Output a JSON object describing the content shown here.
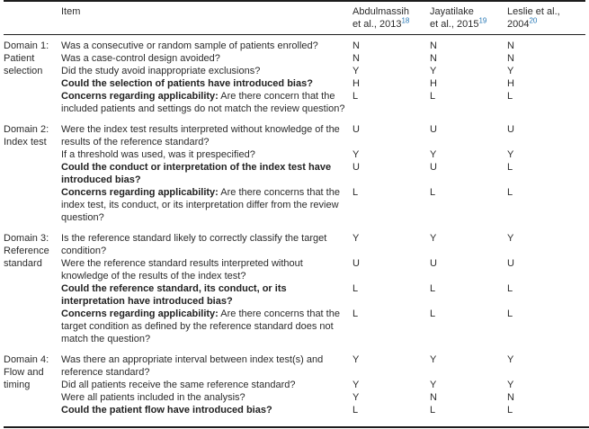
{
  "colors": {
    "text": "#2b2b2b",
    "rule": "#1c1c1c",
    "citation_link": "#2577b5",
    "background": "#ffffff"
  },
  "header": {
    "item_label": "Item",
    "studies": [
      {
        "lines": [
          "Abdulmassih",
          "et al., 2013"
        ],
        "ref": "18"
      },
      {
        "lines": [
          "Jayatilake",
          "et al., 2015"
        ],
        "ref": "19"
      },
      {
        "lines": [
          "Leslie et al.,",
          "2004"
        ],
        "ref": "20"
      }
    ]
  },
  "domains": [
    {
      "label": "Domain 1: Patient selection",
      "rows": [
        {
          "text": "Was a consecutive or random sample of patients enrolled?",
          "values": [
            "N",
            "N",
            "N"
          ]
        },
        {
          "text": "Was a case-control design avoided?",
          "values": [
            "N",
            "N",
            "N"
          ]
        },
        {
          "text": "Did the study avoid inappropriate exclusions?",
          "values": [
            "Y",
            "Y",
            "Y"
          ]
        },
        {
          "text": "Could the selection of patients have introduced bias?",
          "bold": true,
          "values": [
            "H",
            "H",
            "H"
          ]
        },
        {
          "prefix": "Concerns regarding applicability:",
          "text": "Are there concern that the included patients and settings do not match the review question?",
          "values": [
            "L",
            "L",
            "L"
          ]
        }
      ]
    },
    {
      "label": "Domain 2: Index test",
      "rows": [
        {
          "text": "Were the index test results interpreted without knowledge of the results of the reference standard?",
          "values": [
            "U",
            "U",
            "U"
          ]
        },
        {
          "text": "If a threshold was used, was it prespecified?",
          "values": [
            "Y",
            "Y",
            "Y"
          ]
        },
        {
          "text": "Could the conduct or interpretation of the index test have introduced bias?",
          "bold": true,
          "values": [
            "U",
            "U",
            "L"
          ]
        },
        {
          "prefix": "Concerns regarding applicability:",
          "text": "Are there concerns that the index test, its conduct, or its interpretation differ from the review question?",
          "values": [
            "L",
            "L",
            "L"
          ]
        }
      ]
    },
    {
      "label": "Domain 3: Reference standard",
      "rows": [
        {
          "text": "Is the reference standard likely to correctly classify the target condition?",
          "values": [
            "Y",
            "Y",
            "Y"
          ]
        },
        {
          "text": "Were the reference standard results interpreted without knowledge of the results of the index test?",
          "values": [
            "U",
            "U",
            "U"
          ]
        },
        {
          "text": "Could the reference standard, its conduct, or its interpretation have introduced bias?",
          "bold": true,
          "values": [
            "L",
            "L",
            "L"
          ]
        },
        {
          "prefix": "Concerns regarding applicability:",
          "text": "Are there concerns that the target condition as defined by the reference standard does not match the question?",
          "values": [
            "L",
            "L",
            "L"
          ]
        }
      ]
    },
    {
      "label": "Domain 4: Flow and timing",
      "rows": [
        {
          "text": "Was there an appropriate interval between index test(s) and reference standard?",
          "values": [
            "Y",
            "Y",
            "Y"
          ]
        },
        {
          "text": "Did all patients receive the same reference standard?",
          "values": [
            "Y",
            "Y",
            "Y"
          ]
        },
        {
          "text": "Were all patients included in the analysis?",
          "values": [
            "Y",
            "N",
            "N"
          ]
        },
        {
          "text": "Could the patient flow have introduced bias?",
          "bold": true,
          "values": [
            "L",
            "L",
            "L"
          ]
        }
      ]
    }
  ]
}
